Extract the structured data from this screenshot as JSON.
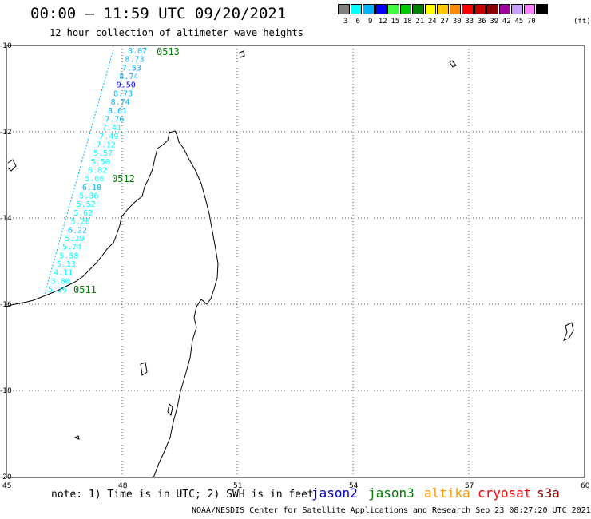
{
  "title": "00:00 – 11:59 UTC 09/20/2021",
  "subtitle": "12 hour collection of altimeter wave heights",
  "scale": {
    "labels": [
      "3",
      "6",
      "9",
      "12",
      "15",
      "18",
      "21",
      "24",
      "27",
      "30",
      "33",
      "36",
      "39",
      "42",
      "45",
      "70"
    ],
    "unit": "(ft)",
    "colors": [
      "#808080",
      "#00ffff",
      "#00b4ff",
      "#0000ff",
      "#40ff40",
      "#00c800",
      "#008000",
      "#ffff00",
      "#ffc800",
      "#ff8c00",
      "#ff0000",
      "#c80000",
      "#8c0000",
      "#a000a0",
      "#c8a0ff",
      "#ff80ff",
      "#000000"
    ]
  },
  "axes": {
    "x_ticks": [
      "45",
      "48",
      "51",
      "54",
      "57",
      "60"
    ],
    "y_ticks": [
      "-10",
      "-12",
      "-14",
      "-16",
      "-18",
      "-20"
    ]
  },
  "passes": [
    {
      "label": "0513"
    },
    {
      "label": "0512"
    },
    {
      "label": "0511"
    }
  ],
  "wave_heights": [
    "8.07",
    "8.73",
    "7.53",
    "8.74",
    "9.50",
    "8.73",
    "8.74",
    "8.61",
    "7.76",
    "7.41",
    "7.49",
    "7.12",
    "5.57",
    "5.50",
    "6.82",
    "5.66",
    "6.18",
    "5.36",
    "5.52",
    "5.62",
    "5.26",
    "6.22",
    "5.29",
    "5.74",
    "5.58",
    "5.13",
    "4.11",
    "3.80",
    "5.26"
  ],
  "wave_colors": [
    "#00b4ff",
    "#00b4ff",
    "#00b4ff",
    "#00b4ff",
    "#0000ff",
    "#00b4ff",
    "#00b4ff",
    "#00b4ff",
    "#00b4ff",
    "#00ffff",
    "#00ffff",
    "#00ffff",
    "#00ffff",
    "#00ffff",
    "#00ffff",
    "#00ffff",
    "#00b4ff",
    "#00ffff",
    "#00ffff",
    "#00ffff",
    "#00ffff",
    "#00b4ff",
    "#00ffff",
    "#00ffff",
    "#00ffff",
    "#00ffff",
    "#00ffff",
    "#00ffff",
    "#00ffff"
  ],
  "note": "note: 1) Time is in UTC; 2) SWH is in feet",
  "legend": [
    {
      "name": "jason2",
      "color": "#0000c8"
    },
    {
      "name": "jason3",
      "color": "#008000"
    },
    {
      "name": "altika",
      "color": "#ff9600"
    },
    {
      "name": "cryosat",
      "color": "#ff0000"
    },
    {
      "name": "s3a",
      "color": "#8c0000"
    }
  ],
  "footer": "NOAA/NESDIS Center for Satellite Applications and Research    Sep 23 08:27:20 UTC 2021"
}
